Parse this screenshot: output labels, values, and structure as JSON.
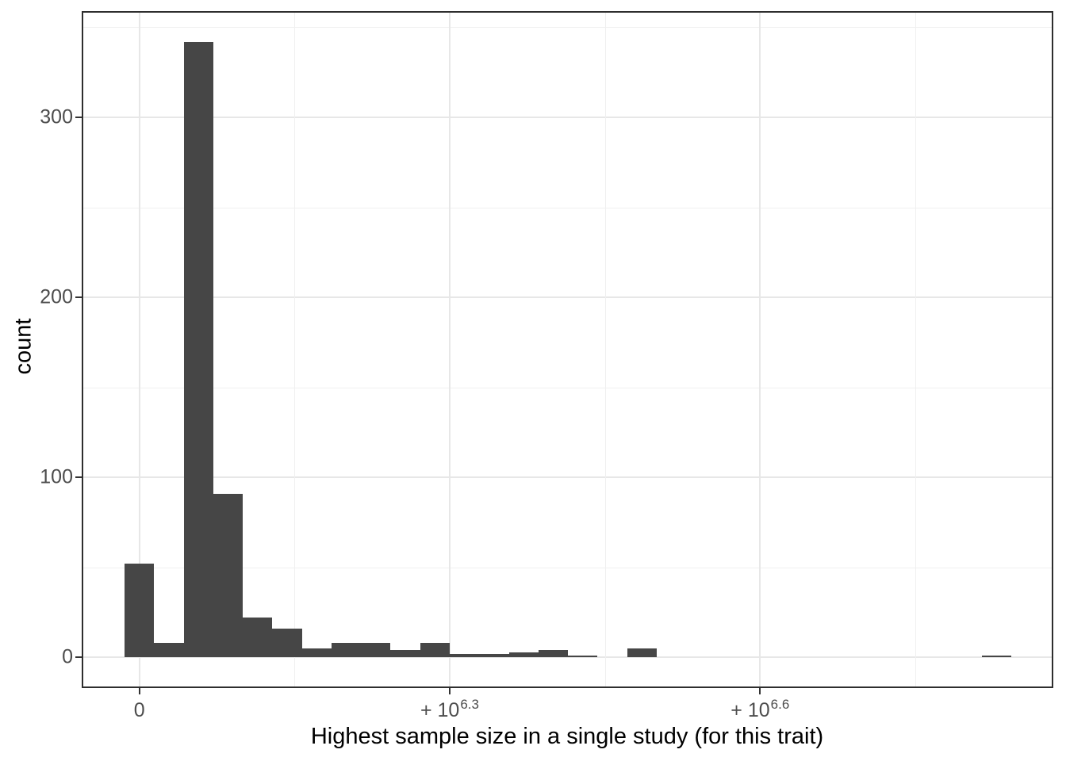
{
  "chart_data": {
    "type": "bar",
    "subtype": "histogram",
    "title": "",
    "xlabel": "Highest sample size in a single study (for this trait)",
    "ylabel": "count",
    "legend": "none",
    "grid": "on",
    "x_axis": {
      "note": "signed pseudo-log sample-size axis; u measured in bin-widths from the 0 tick",
      "range_u": [
        -1.95,
        30.92
      ],
      "major_ticks": [
        {
          "u": 0,
          "main": "0",
          "sup": ""
        },
        {
          "u": 10.5,
          "main": "+ 10",
          "sup": "6.3"
        },
        {
          "u": 21,
          "main": "+ 10",
          "sup": "6.6"
        }
      ],
      "minor_ticks_u": [
        5.25,
        15.75,
        26.25
      ]
    },
    "y_axis": {
      "range": [
        -17,
        359
      ],
      "major_ticks": [
        0,
        100,
        200,
        300
      ],
      "minor_ticks": [
        50,
        150,
        250,
        350
      ],
      "tick_labels": [
        "0",
        "100",
        "200",
        "300"
      ]
    },
    "bins": {
      "start_u": -0.5,
      "width_u": 1,
      "counts": [
        52,
        8,
        342,
        91,
        22,
        16,
        5,
        8,
        8,
        4,
        8,
        2,
        2,
        3,
        4,
        1,
        0,
        5,
        0,
        0,
        0,
        0,
        0,
        0,
        0,
        0,
        0,
        0,
        0,
        1
      ]
    },
    "colors": {
      "bar_fill": "#464646",
      "panel_border": "#2e2e2e",
      "grid_major": "#e7e7e7",
      "grid_minor": "#f0f0f0",
      "tick_mark": "#333333",
      "tick_label": "#4d4d4d",
      "axis_title": "#000000",
      "background": "#ffffff"
    }
  }
}
